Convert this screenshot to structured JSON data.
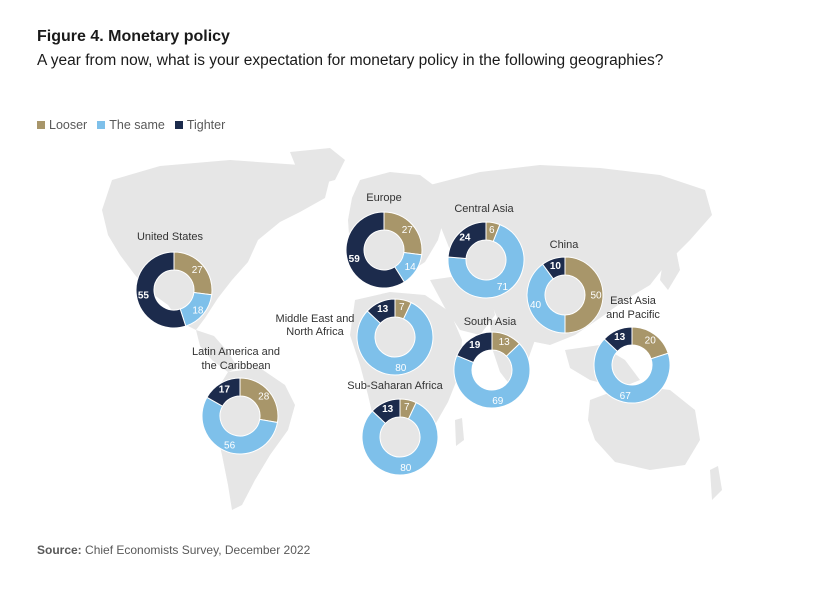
{
  "title": "Figure 4. Monetary policy",
  "subtitle": "A year from now, what is your expectation for monetary policy in the following geographies?",
  "source": {
    "label": "Source:",
    "text": "Chief Economists Survey, December 2022"
  },
  "colors": {
    "looser": "#a8966a",
    "same": "#7ec0ea",
    "tighter": "#1c2b4c",
    "map": "#e6e6e6"
  },
  "chart_data": {
    "type": "pie",
    "categories": [
      "Looser",
      "The same",
      "Tighter"
    ],
    "legend": [
      "Looser",
      "The same",
      "Tighter"
    ],
    "regions": [
      {
        "name": "United States",
        "looser": 27,
        "same": 18,
        "tighter": 55
      },
      {
        "name": "Europe",
        "looser": 27,
        "same": 14,
        "tighter": 59
      },
      {
        "name": "Central Asia",
        "looser": 6,
        "same": 71,
        "tighter": 24
      },
      {
        "name": "China",
        "looser": 50,
        "same": 40,
        "tighter": 10
      },
      {
        "name": "Middle East and North Africa",
        "looser": 7,
        "same": 80,
        "tighter": 13
      },
      {
        "name": "South Asia",
        "looser": 13,
        "same": 69,
        "tighter": 19
      },
      {
        "name": "East Asia and Pacific",
        "looser": 20,
        "same": 67,
        "tighter": 13
      },
      {
        "name": "Latin America and the Caribbean",
        "looser": 28,
        "same": 56,
        "tighter": 17
      },
      {
        "name": "Sub-Saharan Africa",
        "looser": 7,
        "same": 80,
        "tighter": 13
      }
    ]
  }
}
